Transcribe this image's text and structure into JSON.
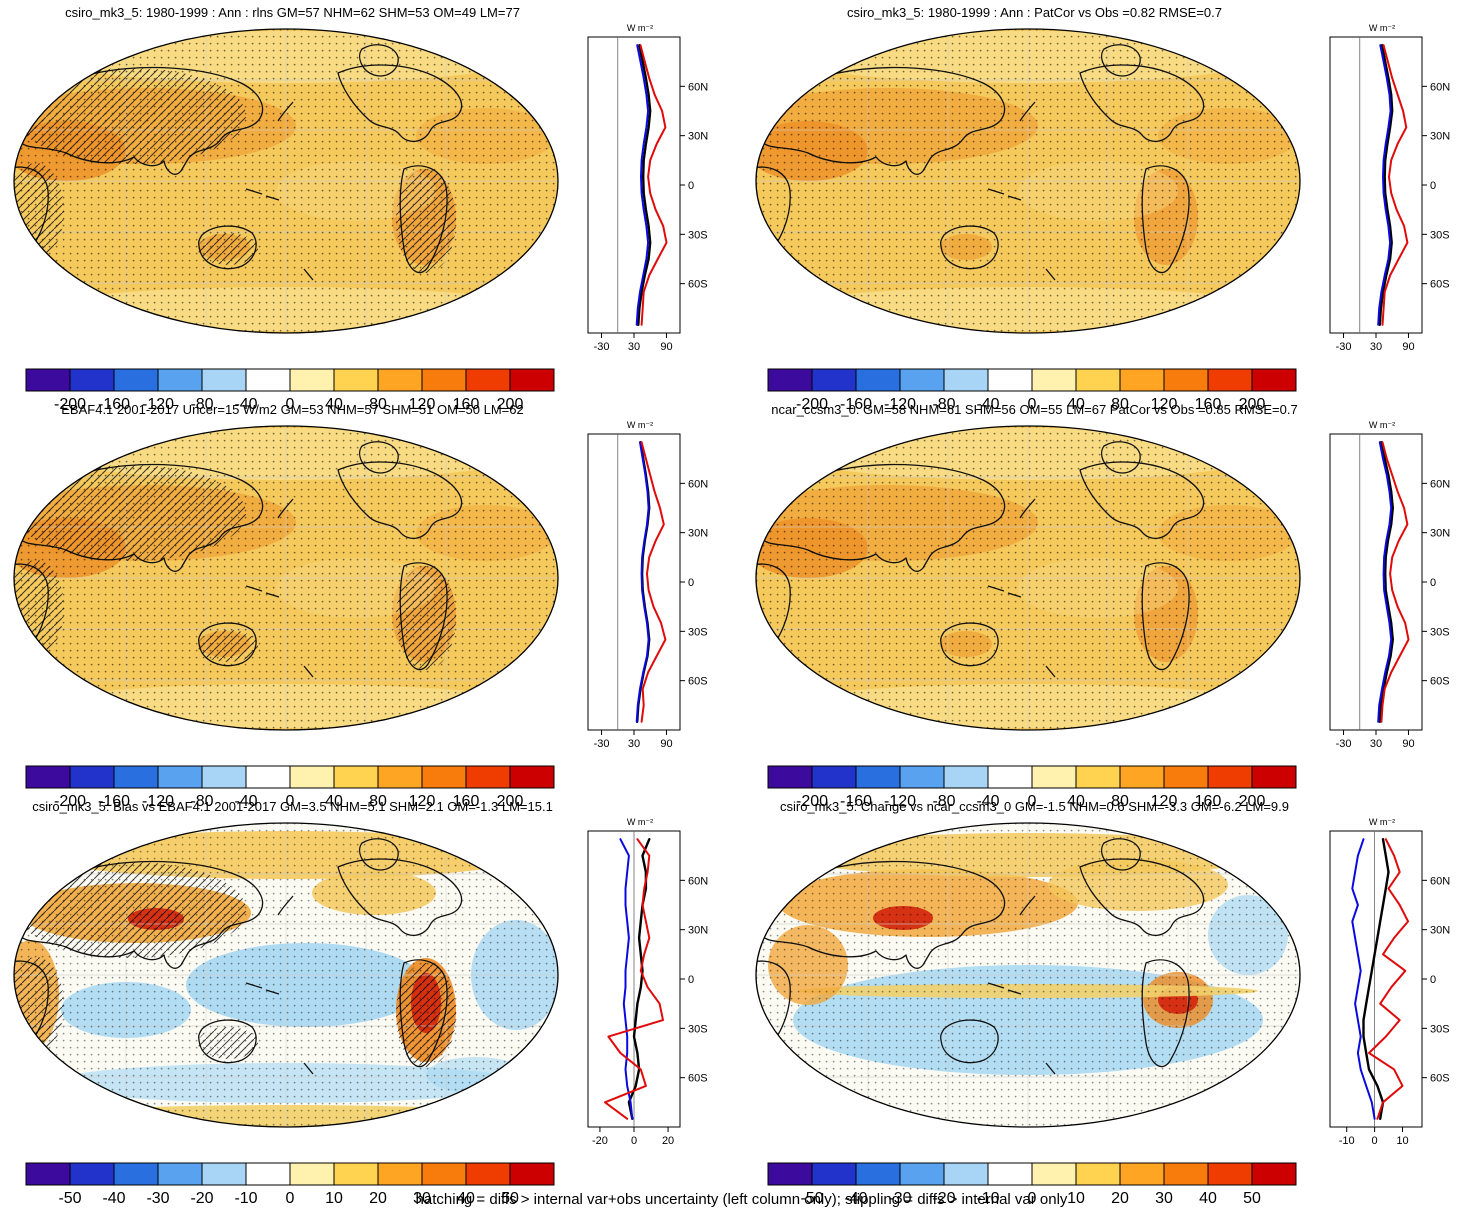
{
  "caption": "hatching = diffs > internal var+obs uncertainty (left column only); stippling = diffs > internal var only",
  "panels": [
    {
      "title": "csiro_mk3_5: 1980-1999 : Ann : rlns GM=57 NHM=62 SHM=53 OM=49 LM=77",
      "unit": "W m⁻²",
      "hatched": true,
      "variant": "orange",
      "colorbar": 0
    },
    {
      "title": "csiro_mk3_5: 1980-1999 : Ann : PatCor vs Obs =0.82 RMSE=0.7",
      "unit": "W m⁻²",
      "hatched": false,
      "variant": "orange",
      "colorbar": 0
    },
    {
      "title": "EBAF4.1 2001-2017 Uncer=15 W/m2 GM=53 NHM=57 SHM=51 OM=50 LM=62",
      "unit": "W m⁻²",
      "hatched": true,
      "variant": "orange",
      "colorbar": 0
    },
    {
      "title": "ncar_ccsm3_0: GM=58 NHM=61 SHM=56 OM=55 LM=67 PatCor vs Obs =0.85 RMSE=0.7",
      "unit": "W m⁻²",
      "hatched": false,
      "variant": "orange",
      "colorbar": 0
    },
    {
      "title": "csiro_mk3_5: Bias vs EBAF4.1 2001-2017 GM=3.5 NHM=5.1 SHM=2.1 OM=-1.3 LM=15.1",
      "unit": "W m⁻²",
      "hatched": true,
      "variant": "bias",
      "colorbar": 1
    },
    {
      "title": "csiro_mk3_5: Change vs ncar_ccsm3_0 GM=-1.5 NHM=0.6 SHM=-3.3 OM=-6.2 LM=9.9",
      "unit": "W m⁻²",
      "hatched": false,
      "variant": "change",
      "colorbar": 1
    }
  ],
  "colorbars": [
    {
      "tick_labels": [
        "-200",
        "-160",
        "-120",
        "-80",
        "-40",
        "0",
        "40",
        "80",
        "120",
        "160",
        "200"
      ],
      "colors": [
        "#3c0b9e",
        "#2233cc",
        "#2a6fe0",
        "#58a2f0",
        "#a8d4f6",
        "#ffffff",
        "#fff2ae",
        "#ffd24f",
        "#ffa524",
        "#f87c0c",
        "#ef3c00",
        "#cc0000"
      ]
    },
    {
      "tick_labels": [
        "-50",
        "-40",
        "-30",
        "-20",
        "-10",
        "0",
        "10",
        "20",
        "30",
        "40",
        "50"
      ],
      "colors": [
        "#3c0b9e",
        "#2233cc",
        "#2a6fe0",
        "#58a2f0",
        "#a8d4f6",
        "#ffffff",
        "#fff2ae",
        "#ffd24f",
        "#ffa524",
        "#f87c0c",
        "#ef3c00",
        "#cc0000"
      ]
    }
  ],
  "map_colors": {
    "warm_base": "#f5c95c",
    "warm_mid": "#f1a83c",
    "warm_deep": "#ec8f26",
    "warm_pale": "#f8dd86",
    "cool": "#a6d7f2",
    "cool_light": "#bfe2f5",
    "hot": "#d42a10",
    "orange_strong": "#ee8a20",
    "neutral": "#fbfbf4",
    "band_yellow": "#f2d06a"
  },
  "chart_data": [
    {
      "type": "line",
      "title": "csiro_mk3_5: 1980-1999 : Ann : rlns GM=57 NHM=62 SHM=53 OM=49 LM=77",
      "x_label": "W m⁻²",
      "xlim": [
        -55,
        115
      ],
      "xticks": [
        -30,
        30,
        90
      ],
      "lat_ticks": [
        60,
        30,
        0,
        -30,
        -60
      ],
      "lat_tick_labels": [
        "60N",
        "30N",
        "0",
        "30S",
        "60S"
      ],
      "lat": [
        85,
        75,
        65,
        55,
        45,
        35,
        25,
        15,
        5,
        -5,
        -15,
        -25,
        -35,
        -45,
        -55,
        -65,
        -75,
        -85
      ],
      "series": [
        {
          "name": "black-line",
          "color": "#000000",
          "values": [
            40,
            46,
            52,
            57,
            60,
            57,
            52,
            48,
            47,
            48,
            52,
            57,
            60,
            57,
            50,
            44,
            40,
            38
          ]
        },
        {
          "name": "blue-line",
          "color": "#0a0ae0",
          "values": [
            36,
            42,
            48,
            53,
            56,
            53,
            48,
            44,
            43,
            44,
            48,
            53,
            56,
            53,
            47,
            41,
            37,
            35
          ]
        },
        {
          "name": "red-line",
          "color": "#e00a0a",
          "values": [
            42,
            50,
            58,
            68,
            82,
            88,
            72,
            60,
            56,
            60,
            70,
            84,
            90,
            74,
            58,
            48,
            46,
            44
          ]
        }
      ]
    },
    {
      "type": "line",
      "title": "csiro_mk3_5: 1980-1999 : Ann : PatCor vs Obs =0.82 RMSE=0.7",
      "x_label": "W m⁻²",
      "xlim": [
        -55,
        115
      ],
      "xticks": [
        -30,
        30,
        90
      ],
      "lat_ticks": [
        60,
        30,
        0,
        -30,
        -60
      ],
      "lat_tick_labels": [
        "60N",
        "30N",
        "0",
        "30S",
        "60S"
      ],
      "lat": [
        85,
        75,
        65,
        55,
        45,
        35,
        25,
        15,
        5,
        -5,
        -15,
        -25,
        -35,
        -45,
        -55,
        -65,
        -75,
        -85
      ],
      "series": [
        {
          "name": "black-line",
          "color": "#000000",
          "values": [
            41,
            47,
            53,
            58,
            60,
            56,
            51,
            47,
            46,
            47,
            51,
            56,
            59,
            56,
            49,
            43,
            39,
            37
          ]
        },
        {
          "name": "blue-line",
          "color": "#0a0ae0",
          "values": [
            38,
            44,
            50,
            55,
            57,
            53,
            48,
            44,
            43,
            44,
            48,
            53,
            56,
            53,
            46,
            40,
            36,
            34
          ]
        },
        {
          "name": "red-line",
          "color": "#e00a0a",
          "values": [
            44,
            52,
            60,
            70,
            80,
            86,
            70,
            58,
            54,
            58,
            68,
            82,
            88,
            72,
            56,
            46,
            44,
            42
          ]
        }
      ]
    },
    {
      "type": "line",
      "title": "EBAF4.1 2001-2017 Uncer=15 W/m2 GM=53 NHM=57 SHM=51 OM=50 LM=62",
      "x_label": "W m⁻²",
      "xlim": [
        -55,
        115
      ],
      "xticks": [
        -30,
        30,
        90
      ],
      "lat_ticks": [
        60,
        30,
        0,
        -30,
        -60
      ],
      "lat_tick_labels": [
        "60N",
        "30N",
        "0",
        "30S",
        "60S"
      ],
      "lat": [
        85,
        75,
        65,
        55,
        45,
        35,
        25,
        15,
        5,
        -5,
        -15,
        -25,
        -35,
        -45,
        -55,
        -65,
        -75,
        -85
      ],
      "series": [
        {
          "name": "black-line",
          "color": "#000000",
          "values": [
            42,
            47,
            52,
            56,
            58,
            55,
            50,
            46,
            45,
            46,
            50,
            55,
            58,
            55,
            48,
            42,
            38,
            36
          ]
        },
        {
          "name": "blue-line",
          "color": "#0a0ae0",
          "values": [
            41,
            46,
            51,
            55,
            57,
            54,
            49,
            45,
            44,
            45,
            49,
            54,
            57,
            54,
            47,
            41,
            37,
            35
          ]
        },
        {
          "name": "red-line",
          "color": "#e00a0a",
          "values": [
            44,
            52,
            60,
            68,
            78,
            85,
            70,
            58,
            54,
            57,
            66,
            80,
            88,
            72,
            56,
            46,
            48,
            44
          ]
        }
      ]
    },
    {
      "type": "line",
      "title": "ncar_ccsm3_0: GM=58 NHM=61 SHM=56 OM=55 LM=67 PatCor vs Obs =0.85 RMSE=0.7",
      "x_label": "W m⁻²",
      "xlim": [
        -55,
        115
      ],
      "xticks": [
        -30,
        30,
        90
      ],
      "lat_ticks": [
        60,
        30,
        0,
        -30,
        -60
      ],
      "lat_tick_labels": [
        "60N",
        "30N",
        "0",
        "30S",
        "60S"
      ],
      "lat": [
        85,
        75,
        65,
        55,
        45,
        35,
        25,
        15,
        5,
        -5,
        -15,
        -25,
        -35,
        -45,
        -55,
        -65,
        -75,
        -85
      ],
      "series": [
        {
          "name": "black-line",
          "color": "#000000",
          "values": [
            40,
            46,
            53,
            58,
            61,
            58,
            52,
            48,
            47,
            48,
            53,
            58,
            61,
            57,
            50,
            44,
            39,
            37
          ]
        },
        {
          "name": "blue-line",
          "color": "#0a0ae0",
          "values": [
            37,
            43,
            50,
            55,
            58,
            55,
            49,
            45,
            44,
            45,
            50,
            55,
            58,
            54,
            47,
            41,
            36,
            34
          ]
        },
        {
          "name": "red-line",
          "color": "#e00a0a",
          "values": [
            42,
            50,
            60,
            70,
            82,
            88,
            72,
            60,
            56,
            60,
            70,
            84,
            90,
            74,
            58,
            46,
            42,
            40
          ]
        }
      ]
    },
    {
      "type": "line",
      "title": "csiro_mk3_5: Bias vs EBAF4.1 2001-2017 GM=3.5 NHM=5.1 SHM=2.1 OM=-1.3 LM=15.1",
      "x_label": "W m⁻²",
      "xlim": [
        -27,
        27
      ],
      "xticks": [
        -20,
        0,
        20
      ],
      "lat_ticks": [
        60,
        30,
        0,
        -30,
        -60
      ],
      "lat_tick_labels": [
        "60N",
        "30N",
        "0",
        "30S",
        "60S"
      ],
      "lat": [
        85,
        75,
        65,
        55,
        45,
        35,
        25,
        15,
        5,
        -5,
        -15,
        -25,
        -35,
        -45,
        -55,
        -65,
        -75,
        -85
      ],
      "series": [
        {
          "name": "black-line",
          "color": "#000000",
          "values": [
            9,
            5,
            7,
            7,
            5,
            4,
            3,
            4,
            5,
            4,
            2,
            1,
            0,
            2,
            3,
            1,
            -3,
            -1
          ]
        },
        {
          "name": "blue-line",
          "color": "#0a0ae0",
          "values": [
            -8,
            -3,
            -4,
            -5,
            -5,
            -4,
            -3,
            -4,
            -5,
            -5,
            -6,
            -5,
            -4,
            -4,
            -5,
            -4,
            -2,
            -1
          ]
        },
        {
          "name": "red-line",
          "color": "#e00a0a",
          "values": [
            2,
            9,
            8,
            6,
            5,
            7,
            9,
            6,
            4,
            8,
            15,
            17,
            -15,
            -8,
            4,
            7,
            -17,
            -4
          ]
        }
      ]
    },
    {
      "type": "line",
      "title": "csiro_mk3_5: Change vs ncar_ccsm3_0 GM=-1.5 NHM=0.6 SHM=-3.3 OM=-6.2 LM=9.9",
      "x_label": "W m⁻²",
      "xlim": [
        -16,
        17
      ],
      "xticks": [
        -10,
        0,
        10
      ],
      "lat_ticks": [
        60,
        30,
        0,
        -30,
        -60
      ],
      "lat_tick_labels": [
        "60N",
        "30N",
        "0",
        "30S",
        "60S"
      ],
      "lat": [
        85,
        75,
        65,
        55,
        45,
        35,
        25,
        15,
        5,
        -5,
        -15,
        -25,
        -35,
        -45,
        -55,
        -65,
        -75,
        -85
      ],
      "series": [
        {
          "name": "black-line",
          "color": "#000000",
          "values": [
            3,
            4,
            5,
            4,
            3,
            2,
            1,
            0,
            -1,
            -2,
            -3,
            -4,
            -4,
            -3,
            -2,
            1,
            3,
            2
          ]
        },
        {
          "name": "blue-line",
          "color": "#0a0ae0",
          "values": [
            -4,
            -6,
            -7,
            -8,
            -6,
            -8,
            -7,
            -6,
            -5,
            -6,
            -7,
            -6,
            -5,
            -6,
            -5,
            -3,
            -1,
            0
          ]
        },
        {
          "name": "red-line",
          "color": "#e00a0a",
          "values": [
            4,
            7,
            9,
            5,
            9,
            12,
            7,
            3,
            11,
            6,
            2,
            9,
            4,
            -2,
            7,
            10,
            3,
            1
          ]
        }
      ]
    }
  ]
}
